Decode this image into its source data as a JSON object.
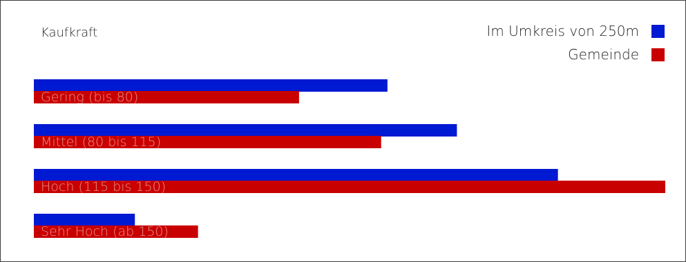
{
  "chart_data": {
    "type": "bar",
    "orientation": "horizontal",
    "title": "Kaufkraft",
    "categories": [
      "Gering (bis 80)",
      "Mittel (80 bis 115)",
      "Hoch (115 bis 150)",
      "Sehr Hoch (ab 150)"
    ],
    "series": [
      {
        "name": "Im Umkreis von 250m",
        "color": "#0019d2",
        "values": [
          56,
          67,
          83,
          16
        ]
      },
      {
        "name": "Gemeinde",
        "color": "#c90000",
        "values": [
          42,
          55,
          100,
          26
        ]
      }
    ],
    "xlim": [
      0,
      100
    ],
    "grid": false,
    "legend_position": "top-right",
    "axes_visible": false
  }
}
